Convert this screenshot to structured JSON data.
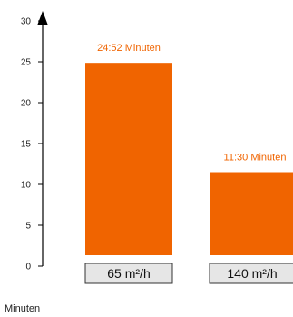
{
  "chart_data": {
    "type": "bar",
    "categories": [
      "65 m²/h",
      "140 m²/h"
    ],
    "values": [
      24.87,
      11.5
    ],
    "value_labels": [
      "24:52 Minuten",
      "11:30 Minuten"
    ],
    "title": "",
    "xlabel": "",
    "ylabel": "Minuten",
    "ylim": [
      0,
      30
    ],
    "yticks": [
      0,
      5,
      10,
      15,
      20,
      25,
      30
    ],
    "grid": false,
    "bar_color": "#f06400",
    "label_color": "#f06400",
    "category_box_fill": "#e6e6e6"
  }
}
